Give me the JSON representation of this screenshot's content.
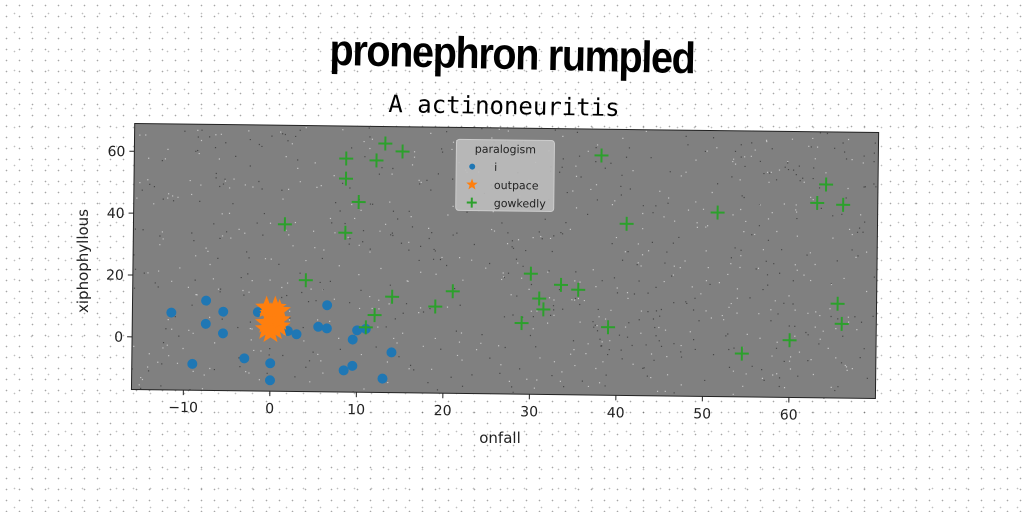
{
  "title": "pronephron rumpled",
  "chart_data": {
    "type": "scatter",
    "title": "A actinoneuritis",
    "xlabel": "onfall",
    "ylabel": "xiphophyllous",
    "xlim": [
      -16,
      70
    ],
    "ylim": [
      -17,
      69
    ],
    "xticks": [
      -10,
      0,
      10,
      20,
      30,
      40,
      50,
      60
    ],
    "xtick_labels": [
      "−10",
      "0",
      "10",
      "20",
      "30",
      "40",
      "50",
      "60"
    ],
    "yticks": [
      0,
      20,
      40,
      60
    ],
    "ytick_labels": [
      "0",
      "20",
      "40",
      "60"
    ],
    "grid": false,
    "legend": {
      "title": "paralogism",
      "position": "top-center"
    },
    "plot_background": "#808080",
    "series": [
      {
        "name": "i",
        "marker": "circle",
        "color": "#1f77b4",
        "points": [
          [
            -11.5,
            8
          ],
          [
            -9,
            -8.5
          ],
          [
            -7.5,
            12
          ],
          [
            -7.5,
            4.5
          ],
          [
            -5.5,
            8.5
          ],
          [
            -5.5,
            1.5
          ],
          [
            -3,
            -6.5
          ],
          [
            -1.5,
            8.5
          ],
          [
            0,
            -8
          ],
          [
            0,
            -13.5
          ],
          [
            2,
            2.5
          ],
          [
            3,
            1.5
          ],
          [
            5.5,
            4
          ],
          [
            6.5,
            3.5
          ],
          [
            6.5,
            11
          ],
          [
            8.5,
            -10
          ],
          [
            9.5,
            0
          ],
          [
            9.5,
            -8.5
          ],
          [
            10,
            3
          ],
          [
            11,
            3.5
          ],
          [
            13,
            -12.5
          ],
          [
            14,
            -4
          ]
        ]
      },
      {
        "name": "outpace",
        "marker": "star",
        "color": "#ff7f0e",
        "points": [
          [
            -0.5,
            10
          ],
          [
            0,
            8
          ],
          [
            0.5,
            6
          ],
          [
            1,
            4
          ],
          [
            0,
            2
          ],
          [
            -0.5,
            5
          ],
          [
            1,
            9
          ],
          [
            0.5,
            3
          ],
          [
            0,
            7
          ],
          [
            -0.5,
            3
          ],
          [
            1,
            6
          ],
          [
            0.5,
            10
          ]
        ]
      },
      {
        "name": "gowkedly",
        "marker": "plus",
        "color": "#2ca02c",
        "points": [
          [
            1.5,
            37
          ],
          [
            4,
            19
          ],
          [
            8.5,
            58.5
          ],
          [
            8.5,
            52
          ],
          [
            8.5,
            34.5
          ],
          [
            10,
            44.5
          ],
          [
            11,
            4
          ],
          [
            12,
            58
          ],
          [
            12,
            8
          ],
          [
            13,
            63.5
          ],
          [
            14,
            14
          ],
          [
            15,
            61
          ],
          [
            19,
            11
          ],
          [
            21,
            16
          ],
          [
            29,
            6
          ],
          [
            30,
            22
          ],
          [
            31,
            14
          ],
          [
            31.5,
            10.5
          ],
          [
            33.5,
            18.5
          ],
          [
            35.5,
            17
          ],
          [
            38,
            60.5
          ],
          [
            39,
            5
          ],
          [
            41,
            38.5
          ],
          [
            51.5,
            42.5
          ],
          [
            54.5,
            -3
          ],
          [
            60,
            1.5
          ],
          [
            63,
            46
          ],
          [
            64,
            52
          ],
          [
            65.5,
            13.5
          ],
          [
            66,
            45.5
          ],
          [
            66,
            7
          ]
        ]
      }
    ]
  }
}
